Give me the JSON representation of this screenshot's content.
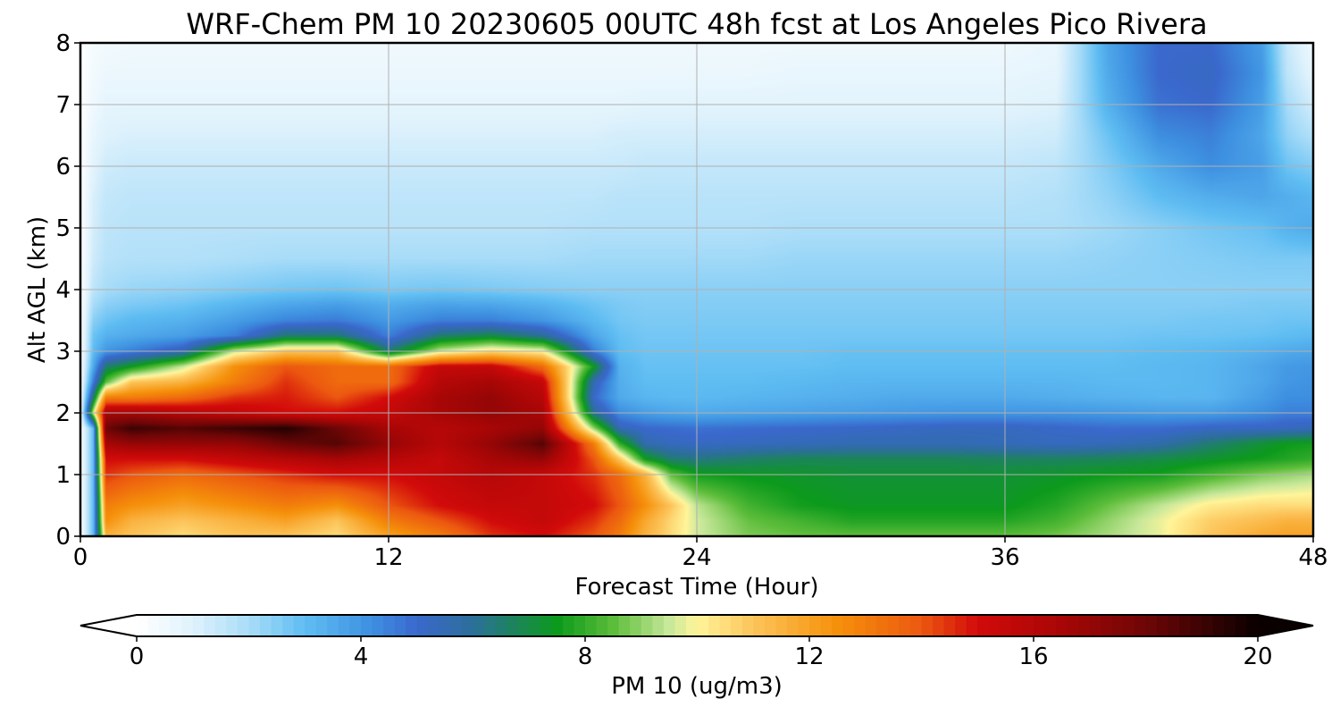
{
  "chart_data": {
    "type": "heatmap",
    "title": "WRF-Chem PM 10  20230605 00UTC 48h fcst at Los Angeles Pico Rivera",
    "xlabel": "Forecast Time (Hour)",
    "ylabel": "Alt AGL (km)",
    "xlim": [
      0,
      48
    ],
    "ylim": [
      0,
      8
    ],
    "x_ticks": [
      "0",
      "12",
      "24",
      "36",
      "48"
    ],
    "y_ticks": [
      "0",
      "1",
      "2",
      "3",
      "4",
      "5",
      "6",
      "7",
      "8"
    ],
    "grid": true,
    "colorbar": {
      "label": "PM 10  (ug/m3)",
      "range": [
        0,
        20
      ],
      "ticks": [
        "0",
        "4",
        "8",
        "12",
        "16",
        "20"
      ],
      "extend": "both",
      "placement": "bottom",
      "stops": [
        {
          "v": 0,
          "c": "#ffffff"
        },
        {
          "v": 1,
          "c": "#dff2fc"
        },
        {
          "v": 2,
          "c": "#a8dcf8"
        },
        {
          "v": 3,
          "c": "#5fbdf2"
        },
        {
          "v": 4.2,
          "c": "#3d8fe0"
        },
        {
          "v": 5,
          "c": "#3a68cc"
        },
        {
          "v": 6,
          "c": "#2c6f9a"
        },
        {
          "v": 7.5,
          "c": "#0c9a1c"
        },
        {
          "v": 8.5,
          "c": "#5cbd3a"
        },
        {
          "v": 9.5,
          "c": "#c8e89a"
        },
        {
          "v": 10,
          "c": "#fff59a"
        },
        {
          "v": 11,
          "c": "#fcc45a"
        },
        {
          "v": 12.5,
          "c": "#f5900a"
        },
        {
          "v": 14,
          "c": "#ec5810"
        },
        {
          "v": 15,
          "c": "#d20a0a"
        },
        {
          "v": 16.5,
          "c": "#a80606"
        },
        {
          "v": 18,
          "c": "#6e0606"
        },
        {
          "v": 20,
          "c": "#0a0000"
        }
      ]
    },
    "x": [
      0,
      0.5,
      1,
      2,
      4,
      6,
      8,
      10,
      12,
      14,
      16,
      18,
      20,
      21,
      22,
      23,
      24,
      26,
      28,
      30,
      32,
      34,
      36,
      38,
      40,
      42,
      44,
      46,
      47,
      48
    ],
    "y": [
      0,
      0.25,
      0.5,
      1,
      1.25,
      1.5,
      1.75,
      2,
      2.25,
      2.5,
      2.75,
      3,
      3.25,
      3.5,
      3.75,
      4,
      4.5,
      5,
      5.5,
      6,
      6.5,
      7,
      7.5,
      8
    ],
    "values": [
      [
        0,
        3,
        11.5,
        11,
        10.5,
        11,
        11,
        10.5,
        12,
        13,
        14.5,
        15,
        14,
        13,
        11.5,
        10.5,
        9.6,
        8.8,
        8.6,
        8.5,
        8.5,
        8.5,
        8.5,
        8.7,
        9.2,
        9.8,
        11,
        11.8,
        12,
        12
      ],
      [
        0,
        3,
        12.5,
        11.5,
        11,
        11.5,
        12,
        11,
        13,
        14,
        15,
        15.5,
        14.5,
        13.5,
        11.8,
        10.6,
        9.6,
        8.6,
        8.2,
        7.8,
        7.8,
        7.8,
        7.8,
        8.2,
        9,
        9.8,
        10.8,
        11.2,
        11.5,
        11.5
      ],
      [
        0,
        3,
        13,
        12.5,
        12,
        12.5,
        13,
        12.5,
        14,
        15,
        15.5,
        15.5,
        15,
        14,
        12.5,
        11,
        9.4,
        8.2,
        7.6,
        7.4,
        7.4,
        7.4,
        7.4,
        7.8,
        8.6,
        9.4,
        10.2,
        10.5,
        10.5,
        10.5
      ],
      [
        0,
        3,
        14.5,
        14,
        13.5,
        14,
        14.5,
        15,
        15,
        15.5,
        16,
        15.5,
        14.5,
        13.5,
        11.5,
        8.5,
        7.6,
        7.4,
        7.3,
        7.2,
        7.2,
        7.2,
        7.2,
        7.3,
        7.5,
        7.6,
        8.2,
        8.8,
        9,
        9.2
      ],
      [
        0,
        3,
        15,
        15,
        15,
        15.5,
        16,
        16.5,
        16,
        15.5,
        16.5,
        17,
        14,
        11,
        7.5,
        6.5,
        6.3,
        6.6,
        6.8,
        6.8,
        6.8,
        6.8,
        6.7,
        6.7,
        6.8,
        7,
        7.3,
        7.6,
        7.8,
        8
      ],
      [
        0,
        3,
        16.5,
        17,
        17,
        17,
        18,
        18.5,
        17,
        16,
        17,
        18.5,
        13,
        8,
        5.6,
        5.3,
        5.2,
        5.3,
        5.4,
        5.5,
        5.5,
        5.5,
        5.4,
        5.3,
        5.4,
        5.7,
        6.5,
        7.2,
        7.5,
        7.6
      ],
      [
        0,
        3,
        18,
        19,
        18.5,
        19,
        19.5,
        18,
        16.5,
        16,
        16.5,
        17,
        9,
        5.5,
        5,
        4.9,
        4.8,
        4.9,
        5,
        5.1,
        5.2,
        5.3,
        5.3,
        5.1,
        4.9,
        4.9,
        5.2,
        5.2,
        5.3,
        5.4
      ],
      [
        0,
        9.5,
        16.5,
        16.5,
        16,
        15.5,
        15,
        15,
        15.5,
        16.5,
        17,
        16.5,
        6,
        4.2,
        3.8,
        3.6,
        3.5,
        3.6,
        3.7,
        3.8,
        3.9,
        4,
        4,
        4,
        3.9,
        3.8,
        3.8,
        4.2,
        4.5,
        4.5
      ],
      [
        0,
        6.5,
        13,
        13,
        13.5,
        14.5,
        14.8,
        14,
        15,
        16.5,
        17,
        16,
        5,
        3.5,
        3.2,
        3.1,
        3.1,
        3.2,
        3.3,
        3.4,
        3.5,
        3.5,
        3.5,
        3.4,
        3.3,
        3.2,
        3.2,
        3.8,
        4.2,
        4.2
      ],
      [
        0,
        4.5,
        8.5,
        11,
        11.5,
        13,
        14.5,
        13.5,
        13.5,
        16,
        16.5,
        15.5,
        5.5,
        3.4,
        3,
        3,
        3,
        3,
        3.1,
        3.2,
        3.2,
        3.2,
        3.2,
        3.2,
        3.1,
        3.1,
        3.2,
        3.6,
        4,
        4.1
      ],
      [
        0,
        3.5,
        6.5,
        7.5,
        9.5,
        12.5,
        14,
        13.5,
        13.5,
        15.5,
        15.5,
        13.5,
        7.5,
        3.3,
        2.9,
        2.9,
        2.9,
        2.9,
        2.9,
        3,
        3,
        3,
        3,
        3,
        3,
        3.1,
        3.2,
        3.6,
        3.9,
        4
      ],
      [
        0,
        3,
        4,
        4.5,
        5.5,
        9.5,
        11,
        11,
        6.5,
        9.5,
        10.5,
        10,
        4.5,
        3,
        2.8,
        2.8,
        2.8,
        2.8,
        2.8,
        2.9,
        2.9,
        2.9,
        2.9,
        2.9,
        2.9,
        3,
        3.1,
        3.3,
        3.5,
        3.6
      ],
      [
        0,
        2.8,
        3.3,
        3.5,
        3.8,
        4.5,
        6.5,
        6.5,
        4.5,
        6.5,
        7,
        6,
        3.6,
        2.9,
        2.7,
        2.7,
        2.7,
        2.7,
        2.7,
        2.7,
        2.7,
        2.7,
        2.7,
        2.7,
        2.7,
        2.8,
        2.8,
        2.9,
        3,
        3.1
      ],
      [
        0,
        2.4,
        2.8,
        3.1,
        3.3,
        3.8,
        4.4,
        4.6,
        3.9,
        4.5,
        4.5,
        4,
        3.1,
        2.7,
        2.6,
        2.6,
        2.6,
        2.6,
        2.6,
        2.6,
        2.6,
        2.6,
        2.6,
        2.6,
        2.6,
        2.6,
        2.7,
        2.7,
        2.8,
        2.8
      ],
      [
        0,
        2,
        2.4,
        2.6,
        2.8,
        3.2,
        3.6,
        3.8,
        3.4,
        3.7,
        3.6,
        3.3,
        2.8,
        2.6,
        2.5,
        2.5,
        2.5,
        2.5,
        2.5,
        2.5,
        2.5,
        2.5,
        2.5,
        2.5,
        2.5,
        2.5,
        2.5,
        2.6,
        2.6,
        2.6
      ],
      [
        0,
        1.6,
        2,
        2.2,
        2.3,
        2.5,
        2.7,
        2.8,
        2.6,
        2.7,
        2.6,
        2.5,
        2.4,
        2.4,
        2.4,
        2.4,
        2.4,
        2.4,
        2.4,
        2.4,
        2.4,
        2.4,
        2.4,
        2.4,
        2.4,
        2.4,
        2.4,
        2.4,
        2.4,
        2.4
      ],
      [
        0,
        1.3,
        1.7,
        1.8,
        1.8,
        1.9,
        2,
        2,
        2,
        2,
        2,
        2,
        2.1,
        2.1,
        2.1,
        2.1,
        2.1,
        2.1,
        2.2,
        2.2,
        2.2,
        2.2,
        2.2,
        2.2,
        2.3,
        2.4,
        2.5,
        2.6,
        2.6,
        2.6
      ],
      [
        0,
        1.2,
        1.6,
        1.7,
        1.7,
        1.7,
        1.7,
        1.7,
        1.7,
        1.7,
        1.7,
        1.7,
        1.8,
        1.8,
        1.8,
        1.8,
        1.8,
        1.8,
        1.9,
        1.9,
        1.9,
        1.9,
        1.9,
        1.9,
        2.1,
        2.4,
        2.7,
        2.9,
        3.3,
        3.5
      ],
      [
        0,
        1.1,
        1.5,
        1.6,
        1.6,
        1.6,
        1.6,
        1.6,
        1.6,
        1.6,
        1.6,
        1.6,
        1.6,
        1.7,
        1.7,
        1.7,
        1.7,
        1.7,
        1.7,
        1.7,
        1.7,
        1.7,
        1.7,
        1.8,
        2.3,
        3,
        3.4,
        3.6,
        3.4,
        3.2
      ],
      [
        0,
        0.9,
        1.3,
        1.4,
        1.4,
        1.4,
        1.4,
        1.4,
        1.4,
        1.4,
        1.4,
        1.4,
        1.4,
        1.4,
        1.5,
        1.5,
        1.5,
        1.5,
        1.5,
        1.5,
        1.5,
        1.5,
        1.5,
        1.6,
        2.5,
        3.5,
        4.2,
        3.8,
        2.8,
        2.5
      ],
      [
        0,
        0.7,
        1,
        1.1,
        1.1,
        1.1,
        1.1,
        1.1,
        1.1,
        1.1,
        1.1,
        1.1,
        1.1,
        1.2,
        1.2,
        1.2,
        1.2,
        1.2,
        1.2,
        1.2,
        1.2,
        1.2,
        1.2,
        1.3,
        2.8,
        4.2,
        4.5,
        3.6,
        2.3,
        1.8
      ],
      [
        0,
        0.5,
        0.8,
        0.8,
        0.8,
        0.8,
        0.8,
        0.8,
        0.8,
        0.8,
        0.8,
        0.8,
        0.8,
        0.8,
        0.9,
        0.9,
        0.9,
        0.9,
        0.9,
        0.9,
        0.9,
        0.9,
        0.9,
        1,
        3.3,
        4.8,
        5,
        3.8,
        2,
        1.2
      ],
      [
        0,
        0.4,
        0.6,
        0.6,
        0.6,
        0.6,
        0.6,
        0.6,
        0.6,
        0.6,
        0.6,
        0.6,
        0.6,
        0.6,
        0.6,
        0.6,
        0.6,
        0.6,
        0.7,
        0.7,
        0.7,
        0.7,
        0.7,
        0.8,
        3.5,
        5,
        5.2,
        4,
        1.6,
        0.8
      ],
      [
        0,
        0.3,
        0.4,
        0.5,
        0.5,
        0.5,
        0.5,
        0.5,
        0.5,
        0.5,
        0.5,
        0.5,
        0.5,
        0.5,
        0.5,
        0.5,
        0.5,
        0.5,
        0.5,
        0.5,
        0.5,
        0.5,
        0.5,
        0.7,
        3.6,
        5,
        5,
        3.8,
        1.4,
        0.5
      ]
    ]
  }
}
